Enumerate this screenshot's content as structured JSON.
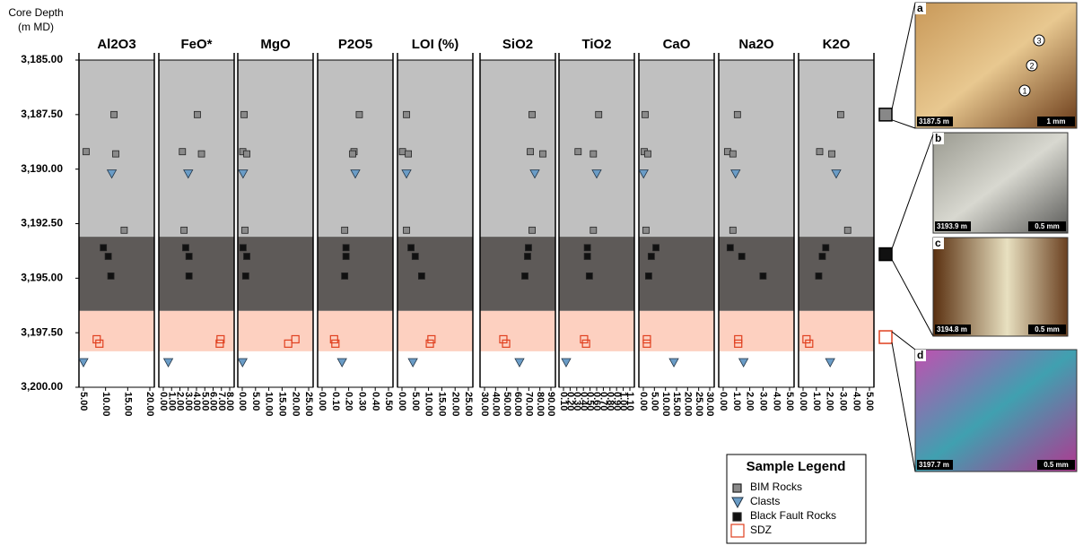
{
  "chart_data": {
    "type": "scatter",
    "ylabel": [
      "Core Depth",
      "(m MD)"
    ],
    "ylim": [
      3185,
      3200
    ],
    "yticks": [
      {
        "value": 3185,
        "label": "3,185.00"
      },
      {
        "value": 3187.5,
        "label": "3,187.50"
      },
      {
        "value": 3190,
        "label": "3,190.00"
      },
      {
        "value": 3192.5,
        "label": "3,192.50"
      },
      {
        "value": 3195,
        "label": "3,195.00"
      },
      {
        "value": 3197.5,
        "label": "3,197.50"
      },
      {
        "value": 3200,
        "label": "3,200.00"
      }
    ],
    "bands": [
      {
        "from": 3185,
        "to": 3193.1,
        "color": "#c0c0c0"
      },
      {
        "from": 3193.1,
        "to": 3196.5,
        "color": "#5e5a58"
      },
      {
        "from": 3196.5,
        "to": 3198.35,
        "color": "#fdd0c0"
      }
    ],
    "legend_title": "Sample Legend",
    "series": [
      {
        "name": "BIM Rocks",
        "color": "#8a8a8a",
        "marker": "square"
      },
      {
        "name": "Clasts",
        "color": "#6a9cc6",
        "marker": "triangle"
      },
      {
        "name": "Black Fault Rocks",
        "color": "#111111",
        "marker": "square"
      },
      {
        "name": "SDZ",
        "color": "#e0401f",
        "marker": "open-square"
      }
    ],
    "panels": [
      {
        "title": "Al2O3",
        "xlim": [
          5,
          20
        ],
        "xticks": [
          {
            "value": 5,
            "label": "5.00"
          },
          {
            "value": 10,
            "label": "10.00"
          },
          {
            "value": 15,
            "label": "15.00"
          },
          {
            "value": 20,
            "label": "20.00"
          }
        ],
        "points": [
          {
            "x": [
              11.9,
              5.6,
              12.3,
              14.2
            ],
            "y": [
              3187.5,
              3189.2,
              3189.3,
              3192.8
            ]
          },
          {
            "x": [
              11.4,
              5.0
            ],
            "y": [
              3190.2,
              3198.85
            ]
          },
          {
            "x": [
              9.5,
              10.6,
              11.2
            ],
            "y": [
              3193.6,
              3194.0,
              3194.9
            ]
          },
          {
            "x": [
              8.0,
              8.6
            ],
            "y": [
              3197.8,
              3198.0
            ]
          }
        ]
      },
      {
        "title": "FeO*",
        "xlim": [
          0,
          8
        ],
        "xticks": [
          {
            "value": 0,
            "label": "0.00"
          },
          {
            "value": 1,
            "label": "1.00"
          },
          {
            "value": 2,
            "label": "2.00"
          },
          {
            "value": 3,
            "label": "3.00"
          },
          {
            "value": 4,
            "label": "4.00"
          },
          {
            "value": 5,
            "label": "5.00"
          },
          {
            "value": 6,
            "label": "6.00"
          },
          {
            "value": 7,
            "label": "7.00"
          },
          {
            "value": 8,
            "label": "8.00"
          }
        ],
        "points": [
          {
            "x": [
              4.1,
              2.3,
              4.6,
              2.5
            ],
            "y": [
              3187.5,
              3189.2,
              3189.3,
              3192.8
            ]
          },
          {
            "x": [
              3.0,
              0.6
            ],
            "y": [
              3190.2,
              3198.85
            ]
          },
          {
            "x": [
              2.7,
              3.1,
              3.1
            ],
            "y": [
              3193.6,
              3194.0,
              3194.9
            ]
          },
          {
            "x": [
              6.9,
              6.8
            ],
            "y": [
              3197.8,
              3198.0
            ]
          }
        ]
      },
      {
        "title": "MgO",
        "xlim": [
          0,
          25
        ],
        "xticks": [
          {
            "value": 0,
            "label": "0.00"
          },
          {
            "value": 5,
            "label": "5.00"
          },
          {
            "value": 10,
            "label": "10.00"
          },
          {
            "value": 15,
            "label": "15.00"
          },
          {
            "value": 20,
            "label": "20.00"
          },
          {
            "value": 25,
            "label": "25.00"
          }
        ],
        "points": [
          {
            "x": [
              0.7,
              0.2,
              1.7,
              1.0
            ],
            "y": [
              3187.5,
              3189.2,
              3189.3,
              3192.8
            ]
          },
          {
            "x": [
              0.3,
              0.1
            ],
            "y": [
              3190.2,
              3198.85
            ]
          },
          {
            "x": [
              0.3,
              1.7,
              1.3
            ],
            "y": [
              3193.6,
              3194.0,
              3194.9
            ]
          },
          {
            "x": [
              20.0,
              17.3
            ],
            "y": [
              3197.8,
              3198.0
            ]
          }
        ]
      },
      {
        "title": "P2O5",
        "xlim": [
          0,
          0.5
        ],
        "xticks": [
          {
            "value": 0,
            "label": "0.00"
          },
          {
            "value": 0.1,
            "label": "0.10"
          },
          {
            "value": 0.2,
            "label": "0.20"
          },
          {
            "value": 0.3,
            "label": "0.30"
          },
          {
            "value": 0.4,
            "label": "0.40"
          },
          {
            "value": 0.5,
            "label": "0.50"
          }
        ],
        "points": [
          {
            "x": [
              0.28,
              0.24,
              0.23,
              0.17
            ],
            "y": [
              3187.5,
              3189.2,
              3189.3,
              3192.8
            ]
          },
          {
            "x": [
              0.25,
              0.15
            ],
            "y": [
              3190.2,
              3198.85
            ]
          },
          {
            "x": [
              0.18,
              0.18,
              0.17
            ],
            "y": [
              3193.6,
              3194.0,
              3194.9
            ]
          },
          {
            "x": [
              0.09,
              0.1
            ],
            "y": [
              3197.8,
              3198.0
            ]
          }
        ]
      },
      {
        "title": "LOI (%)",
        "xlim": [
          0,
          25
        ],
        "xticks": [
          {
            "value": 0,
            "label": "0.00"
          },
          {
            "value": 5,
            "label": "5.00"
          },
          {
            "value": 10,
            "label": "10.00"
          },
          {
            "value": 15,
            "label": "15.00"
          },
          {
            "value": 20,
            "label": "20.00"
          },
          {
            "value": 25,
            "label": "25.00"
          }
        ],
        "points": [
          {
            "x": [
              1.7,
              0.2,
              2.4,
              1.7
            ],
            "y": [
              3187.5,
              3189.2,
              3189.3,
              3192.8
            ]
          },
          {
            "x": [
              1.7,
              4.1
            ],
            "y": [
              3190.2,
              3198.85
            ]
          },
          {
            "x": [
              3.4,
              5.0,
              7.4
            ],
            "y": [
              3193.6,
              3194.0,
              3194.9
            ]
          },
          {
            "x": [
              11.1,
              10.5
            ],
            "y": [
              3197.8,
              3198.0
            ]
          }
        ]
      },
      {
        "title": "SiO2",
        "xlim": [
          30,
          90
        ],
        "xticks": [
          {
            "value": 30,
            "label": "30.00"
          },
          {
            "value": 40,
            "label": "40.00"
          },
          {
            "value": 50,
            "label": "50.00"
          },
          {
            "value": 60,
            "label": "60.00"
          },
          {
            "value": 70,
            "label": "70.00"
          },
          {
            "value": 80,
            "label": "80.00"
          },
          {
            "value": 90,
            "label": "90.00"
          }
        ],
        "points": [
          {
            "x": [
              73,
              71.4,
              82.7,
              73
            ],
            "y": [
              3187.5,
              3189.2,
              3189.3,
              3192.8
            ]
          },
          {
            "x": [
              75.4,
              61.6
            ],
            "y": [
              3190.2,
              3198.85
            ]
          },
          {
            "x": [
              69.7,
              68.9,
              66.5
            ],
            "y": [
              3193.6,
              3194.0,
              3194.9
            ]
          },
          {
            "x": [
              47.0,
              49.5
            ],
            "y": [
              3197.8,
              3198.0
            ]
          }
        ]
      },
      {
        "title": "TiO2",
        "xlim": [
          0.1,
          1.1
        ],
        "xticks": [
          {
            "value": 0.1,
            "label": "0.10"
          },
          {
            "value": 0.2,
            "label": "0.20"
          },
          {
            "value": 0.3,
            "label": "0.30"
          },
          {
            "value": 0.4,
            "label": "0.40"
          },
          {
            "value": 0.5,
            "label": "0.50"
          },
          {
            "value": 0.6,
            "label": "0.60"
          },
          {
            "value": 0.7,
            "label": "0.70"
          },
          {
            "value": 0.8,
            "label": "0.80"
          },
          {
            "value": 0.9,
            "label": "0.90"
          },
          {
            "value": 1,
            "label": "1.00"
          },
          {
            "value": 1.1,
            "label": "1.10"
          }
        ],
        "points": [
          {
            "x": [
              0.63,
              0.32,
              0.55,
              0.55
            ],
            "y": [
              3187.5,
              3189.2,
              3189.3,
              3192.8
            ]
          },
          {
            "x": [
              0.6,
              0.14
            ],
            "y": [
              3190.2,
              3198.85
            ]
          },
          {
            "x": [
              0.46,
              0.46,
              0.49
            ],
            "y": [
              3193.6,
              3194.0,
              3194.9
            ]
          },
          {
            "x": [
              0.41,
              0.44
            ],
            "y": [
              3197.8,
              3198.0
            ]
          }
        ]
      },
      {
        "title": "CaO",
        "xlim": [
          0,
          30
        ],
        "xticks": [
          {
            "value": 0,
            "label": "0.00"
          },
          {
            "value": 5,
            "label": "5.00"
          },
          {
            "value": 10,
            "label": "10.00"
          },
          {
            "value": 15,
            "label": "15.00"
          },
          {
            "value": 20,
            "label": "20.00"
          },
          {
            "value": 25,
            "label": "25.00"
          },
          {
            "value": 30,
            "label": "30.00"
          }
        ],
        "points": [
          {
            "x": [
              0.8,
              0.4,
              2.0,
              1.2
            ],
            "y": [
              3187.5,
              3189.2,
              3189.3,
              3192.8
            ]
          },
          {
            "x": [
              0.1,
              13.8
            ],
            "y": [
              3190.2,
              3198.85
            ]
          },
          {
            "x": [
              5.7,
              3.6,
              2.4
            ],
            "y": [
              3193.6,
              3194.0,
              3194.9
            ]
          },
          {
            "x": [
              1.6,
              1.6
            ],
            "y": [
              3197.8,
              3198.0
            ]
          }
        ]
      },
      {
        "title": "Na2O",
        "xlim": [
          0,
          5
        ],
        "xticks": [
          {
            "value": 0,
            "label": "0.00"
          },
          {
            "value": 1,
            "label": "1.00"
          },
          {
            "value": 2,
            "label": "2.00"
          },
          {
            "value": 3,
            "label": "3.00"
          },
          {
            "value": 4,
            "label": "4.00"
          },
          {
            "value": 5,
            "label": "5.00"
          }
        ],
        "points": [
          {
            "x": [
              1.07,
              0.33,
              0.73,
              0.73
            ],
            "y": [
              3187.5,
              3189.2,
              3189.3,
              3192.8
            ]
          },
          {
            "x": [
              0.93,
              1.53
            ],
            "y": [
              3190.2,
              3198.85
            ]
          },
          {
            "x": [
              0.53,
              1.4,
              3.0
            ],
            "y": [
              3193.6,
              3194.0,
              3194.9
            ]
          },
          {
            "x": [
              1.13,
              1.13
            ],
            "y": [
              3197.8,
              3198.0
            ]
          }
        ]
      },
      {
        "title": "K2O",
        "xlim": [
          0,
          5
        ],
        "xticks": [
          {
            "value": 0,
            "label": "0.00"
          },
          {
            "value": 1,
            "label": "1.00"
          },
          {
            "value": 2,
            "label": "2.00"
          },
          {
            "value": 3,
            "label": "3.00"
          },
          {
            "value": 4,
            "label": "4.00"
          },
          {
            "value": 5,
            "label": "5.00"
          }
        ],
        "points": [
          {
            "x": [
              2.83,
              1.25,
              2.17,
              3.36
            ],
            "y": [
              3187.5,
              3189.2,
              3189.3,
              3192.8
            ]
          },
          {
            "x": [
              2.5,
              2.04
            ],
            "y": [
              3190.2,
              3198.85
            ]
          },
          {
            "x": [
              1.71,
              1.45,
              1.18
            ],
            "y": [
              3193.6,
              3194.0,
              3194.9
            ]
          },
          {
            "x": [
              0.26,
              0.46
            ],
            "y": [
              3197.8,
              3198.0
            ]
          }
        ]
      }
    ],
    "photos": [
      {
        "letter": "a",
        "depth_label": "3187.5 m",
        "scale": "1 mm",
        "marker_depth": 3187.5,
        "marker_color": "#888888",
        "arrows": [
          "3",
          "2",
          "1"
        ]
      },
      {
        "letter": "b",
        "depth_label": "3193.9 m",
        "scale": "0.5 mm",
        "marker_depth": 3193.9,
        "marker_color": "#111111"
      },
      {
        "letter": "c",
        "depth_label": "3194.8 m",
        "scale": "0.5  mm"
      },
      {
        "letter": "d",
        "depth_label": "3197.7 m",
        "scale": "0.5 mm",
        "marker_depth": 3197.7,
        "marker_color": "#e0401f"
      }
    ]
  }
}
